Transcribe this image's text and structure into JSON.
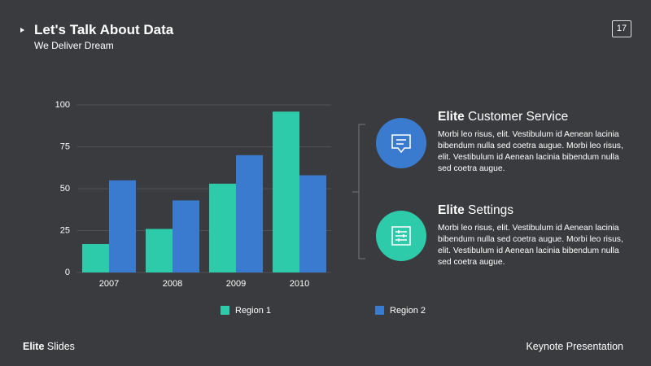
{
  "header": {
    "title": "Let's Talk About Data",
    "subtitle": "We Deliver Dream",
    "page_number": "17"
  },
  "chart_data": {
    "type": "bar",
    "categories": [
      "2007",
      "2008",
      "2009",
      "2010"
    ],
    "series": [
      {
        "name": "Region 1",
        "color": "#2ecbab",
        "values": [
          17,
          26,
          53,
          96
        ]
      },
      {
        "name": "Region 2",
        "color": "#3a7bcf",
        "values": [
          55,
          43,
          70,
          58
        ]
      }
    ],
    "ylim": [
      0,
      100
    ],
    "yticks": [
      0,
      25,
      50,
      75,
      100
    ],
    "grid": true
  },
  "features": [
    {
      "bold": "Elite",
      "title": "Customer Service",
      "body": "Morbi leo risus, elit. Vestibulum id Aenean lacinia bibendum nulla sed coetra augue. Morbi leo risus, elit. Vestibulum id Aenean lacinia bibendum nulla sed coetra augue."
    },
    {
      "bold": "Elite",
      "title": "Settings",
      "body": "Morbi leo risus, elit. Vestibulum id Aenean lacinia bibendum nulla sed coetra augue. Morbi leo risus, elit. Vestibulum id Aenean lacinia bibendum nulla sed coetra augue."
    }
  ],
  "footer": {
    "brand_bold": "Elite",
    "brand": "Slides",
    "right": "Keynote Presentation"
  }
}
